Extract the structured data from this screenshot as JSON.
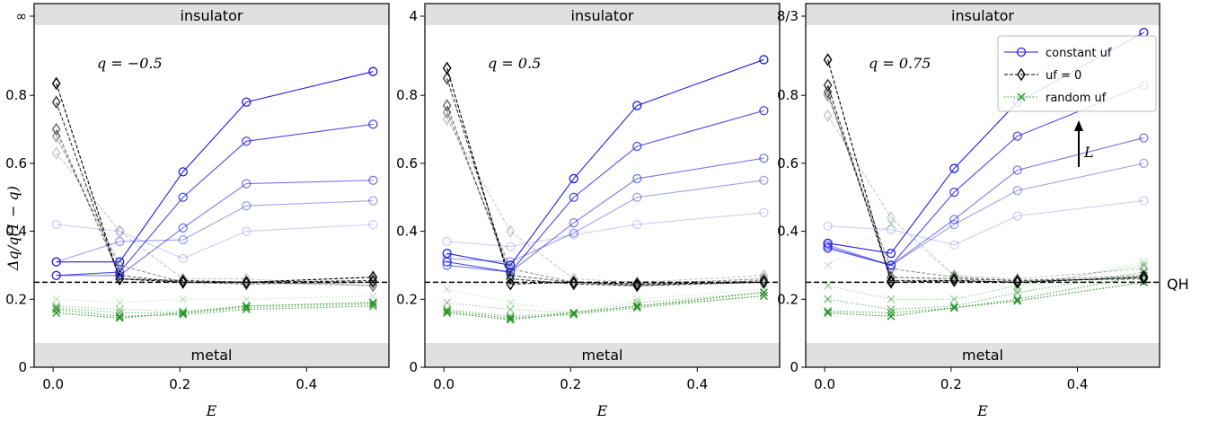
{
  "chart_data": {
    "type": "line",
    "ylabel": "Δq/q(1 − q)",
    "xlabel": "E",
    "x_ticks": [
      "0.0",
      "0.2",
      "0.4"
    ],
    "y_ticks": [
      "0",
      "0.2",
      "0.4",
      "0.6",
      "0.8"
    ],
    "bands": {
      "top": "insulator",
      "bottom": "metal"
    },
    "reference_line": {
      "label": "QH",
      "y": 0.25
    },
    "arrow_label": "L",
    "legend": {
      "position": "top-right",
      "entries": [
        "constant uf",
        "uf = 0",
        "random uf"
      ]
    },
    "colors": {
      "constant": "#1f1fe6",
      "zero": "#000000",
      "random": "#1f8f1f",
      "band": "#e0e0e0"
    },
    "panels": [
      {
        "q_label": "q = −0.5",
        "top_tick": "∞",
        "xlim": [
          -0.03,
          0.53
        ],
        "ylim": [
          0,
          1.07
        ],
        "x": [
          0.005,
          0.105,
          0.205,
          0.305,
          0.505
        ],
        "constant": [
          [
            0.42,
            0.4,
            0.32,
            0.4,
            0.42
          ],
          [
            0.31,
            0.37,
            0.375,
            0.475,
            0.49
          ],
          [
            0.27,
            0.27,
            0.41,
            0.54,
            0.55
          ],
          [
            0.27,
            0.28,
            0.5,
            0.665,
            0.715
          ],
          [
            0.31,
            0.31,
            0.575,
            0.78,
            0.87
          ]
        ],
        "zero": [
          [
            0.63,
            0.4,
            0.26,
            0.26,
            0.24
          ],
          [
            0.68,
            0.3,
            0.25,
            0.25,
            0.24
          ],
          [
            0.7,
            0.27,
            0.25,
            0.245,
            0.25
          ],
          [
            0.78,
            0.26,
            0.255,
            0.25,
            0.255
          ],
          [
            0.835,
            0.26,
            0.25,
            0.25,
            0.265
          ]
        ],
        "random": [
          [
            0.2,
            0.19,
            0.2,
            0.2,
            0.21
          ],
          [
            0.18,
            0.17,
            0.165,
            0.18,
            0.19
          ],
          [
            0.175,
            0.16,
            0.16,
            0.175,
            0.185
          ],
          [
            0.17,
            0.15,
            0.155,
            0.17,
            0.18
          ],
          [
            0.16,
            0.145,
            0.16,
            0.18,
            0.19
          ]
        ]
      },
      {
        "q_label": "q = 0.5",
        "top_tick": "4",
        "xlim": [
          -0.03,
          0.53
        ],
        "ylim": [
          0,
          1.07
        ],
        "x": [
          0.005,
          0.105,
          0.205,
          0.305,
          0.505
        ],
        "constant": [
          [
            0.37,
            0.355,
            0.39,
            0.42,
            0.455
          ],
          [
            0.32,
            0.31,
            0.395,
            0.5,
            0.55
          ],
          [
            0.3,
            0.28,
            0.425,
            0.555,
            0.615
          ],
          [
            0.31,
            0.28,
            0.5,
            0.65,
            0.755
          ],
          [
            0.335,
            0.3,
            0.555,
            0.77,
            0.905
          ]
        ],
        "zero": [
          [
            0.73,
            0.4,
            0.26,
            0.25,
            0.27
          ],
          [
            0.75,
            0.29,
            0.25,
            0.245,
            0.26
          ],
          [
            0.77,
            0.27,
            0.25,
            0.24,
            0.255
          ],
          [
            0.85,
            0.26,
            0.245,
            0.24,
            0.25
          ],
          [
            0.88,
            0.245,
            0.25,
            0.245,
            0.25
          ]
        ],
        "random": [
          [
            0.23,
            0.19,
            0.16,
            0.2,
            0.23
          ],
          [
            0.19,
            0.17,
            0.16,
            0.19,
            0.22
          ],
          [
            0.17,
            0.15,
            0.16,
            0.18,
            0.21
          ],
          [
            0.165,
            0.145,
            0.155,
            0.175,
            0.21
          ],
          [
            0.16,
            0.14,
            0.16,
            0.18,
            0.22
          ]
        ]
      },
      {
        "q_label": "q = 0.75",
        "top_tick": "8/3",
        "xlim": [
          -0.03,
          0.53
        ],
        "ylim": [
          0,
          1.07
        ],
        "x": [
          0.005,
          0.105,
          0.205,
          0.305,
          0.505
        ],
        "constant": [
          [
            0.415,
            0.405,
            0.36,
            0.445,
            0.49
          ],
          [
            0.36,
            0.3,
            0.42,
            0.52,
            0.6
          ],
          [
            0.355,
            0.3,
            0.435,
            0.58,
            0.675
          ],
          [
            0.35,
            0.3,
            0.515,
            0.68,
            0.83
          ],
          [
            0.365,
            0.335,
            0.585,
            0.78,
            0.985
          ]
        ],
        "zero": [
          [
            0.74,
            0.44,
            0.27,
            0.26,
            0.29
          ],
          [
            0.8,
            0.29,
            0.265,
            0.255,
            0.27
          ],
          [
            0.81,
            0.265,
            0.26,
            0.255,
            0.26
          ],
          [
            0.83,
            0.255,
            0.255,
            0.25,
            0.265
          ],
          [
            0.905,
            0.25,
            0.255,
            0.25,
            0.265
          ]
        ],
        "random": [
          [
            0.3,
            0.42,
            0.27,
            0.23,
            0.31
          ],
          [
            0.24,
            0.2,
            0.2,
            0.24,
            0.3
          ],
          [
            0.2,
            0.17,
            0.18,
            0.22,
            0.28
          ],
          [
            0.165,
            0.16,
            0.175,
            0.2,
            0.27
          ],
          [
            0.16,
            0.15,
            0.175,
            0.195,
            0.25
          ]
        ]
      }
    ]
  }
}
